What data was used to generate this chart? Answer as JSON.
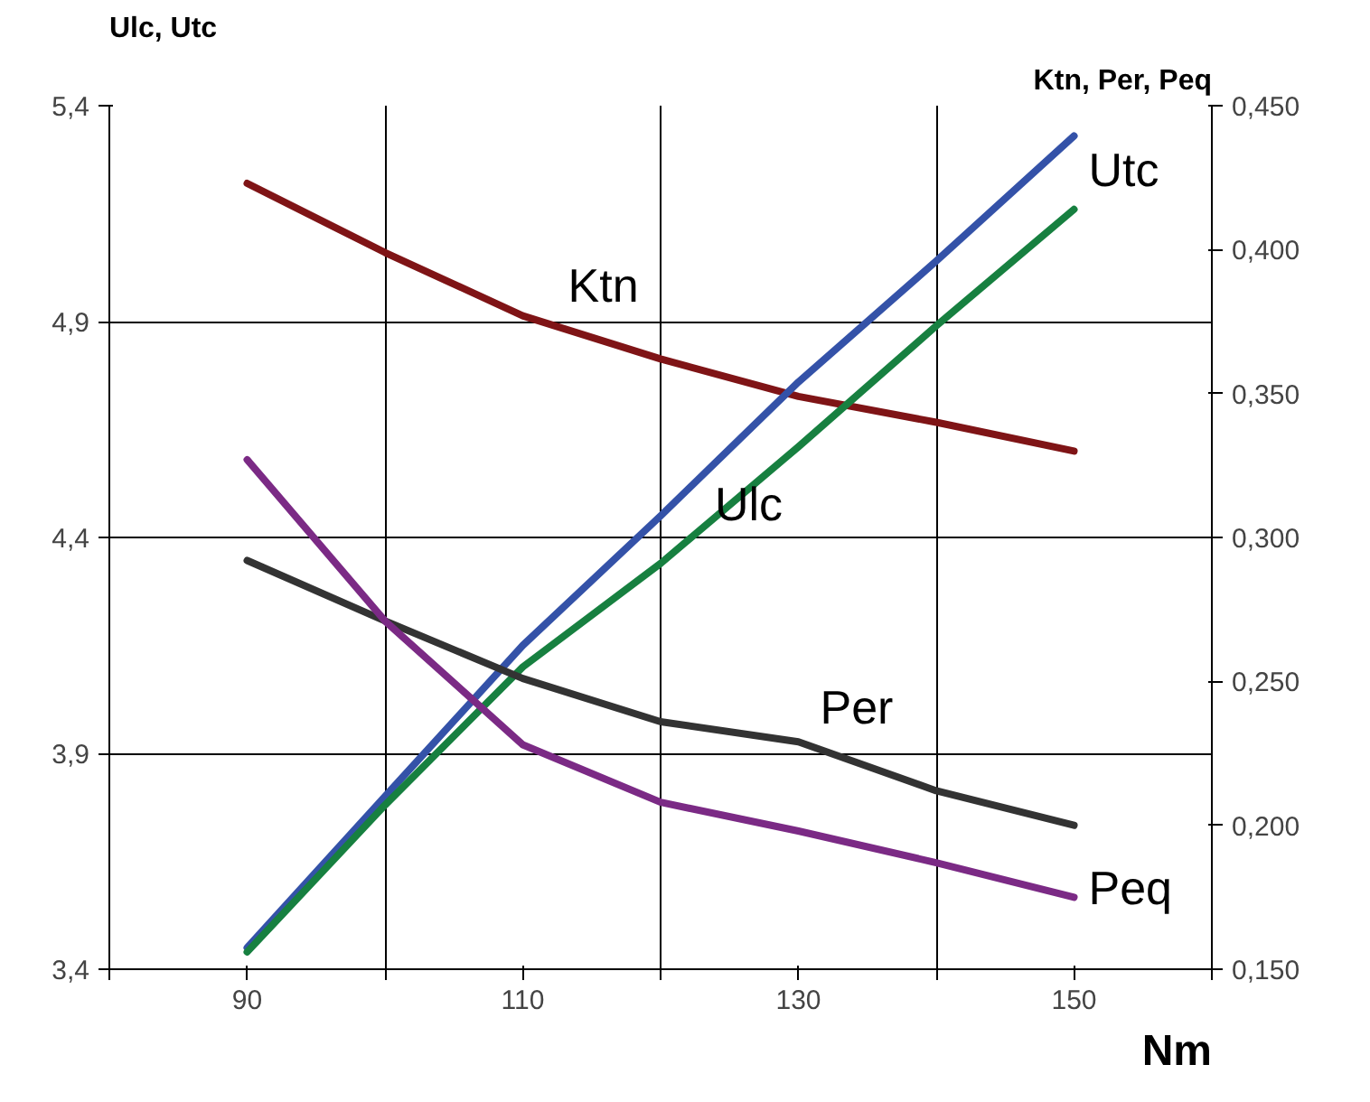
{
  "chart_data": {
    "type": "line",
    "xlabel": "Nm",
    "ylabel": "Ulc, Utc",
    "y2label": "Ktn, Per, Peq",
    "x": [
      90,
      100,
      110,
      120,
      130,
      140,
      150
    ],
    "xlim": [
      80,
      160
    ],
    "xticks": [
      {
        "value": 80,
        "label": null
      },
      90,
      {
        "value": 100,
        "label": null
      },
      110,
      {
        "value": 120,
        "label": null
      },
      130,
      {
        "value": 140,
        "label": null
      },
      150,
      {
        "value": 160,
        "label": null
      }
    ],
    "ylim": [
      3.4,
      5.4
    ],
    "yticks": [
      {
        "value": 3.4,
        "label": "3,4"
      },
      {
        "value": 3.9,
        "label": "3,9"
      },
      {
        "value": 4.4,
        "label": "4,4"
      },
      {
        "value": 4.9,
        "label": "4,9"
      },
      {
        "value": 5.4,
        "label": "5,4"
      }
    ],
    "y2lim": [
      0.15,
      0.45
    ],
    "y2ticks": [
      {
        "value": 0.15,
        "label": "0,150"
      },
      {
        "value": 0.2,
        "label": "0,200"
      },
      {
        "value": 0.25,
        "label": "0,250"
      },
      {
        "value": 0.3,
        "label": "0,300"
      },
      {
        "value": 0.35,
        "label": "0,350"
      },
      {
        "value": 0.4,
        "label": "0,400"
      },
      {
        "value": 0.45,
        "label": "0,450"
      }
    ],
    "grid": true,
    "legend": false,
    "marker": "none",
    "line_style": "solid",
    "series": [
      {
        "name": "Ktn",
        "color": "#7f1416",
        "axis": "y2",
        "values": [
          0.423,
          0.399,
          0.377,
          0.362,
          0.349,
          0.34,
          0.33
        ]
      },
      {
        "name": "Utc",
        "color": "#3452a8",
        "values": [
          3.45,
          3.8,
          4.15,
          4.45,
          4.76,
          5.04,
          5.33
        ]
      },
      {
        "name": "Ulc",
        "color": "#178040",
        "values": [
          3.44,
          3.78,
          4.1,
          4.34,
          4.61,
          4.89,
          5.16
        ]
      },
      {
        "name": "Per",
        "color": "#333333",
        "axis": "y2",
        "values": [
          0.292,
          0.271,
          0.251,
          0.236,
          0.229,
          0.212,
          0.2
        ]
      },
      {
        "name": "Peq",
        "color": "#7b2a85",
        "axis": "y2",
        "values": [
          0.327,
          0.271,
          0.228,
          0.208,
          0.198,
          0.187,
          0.175
        ]
      }
    ]
  }
}
